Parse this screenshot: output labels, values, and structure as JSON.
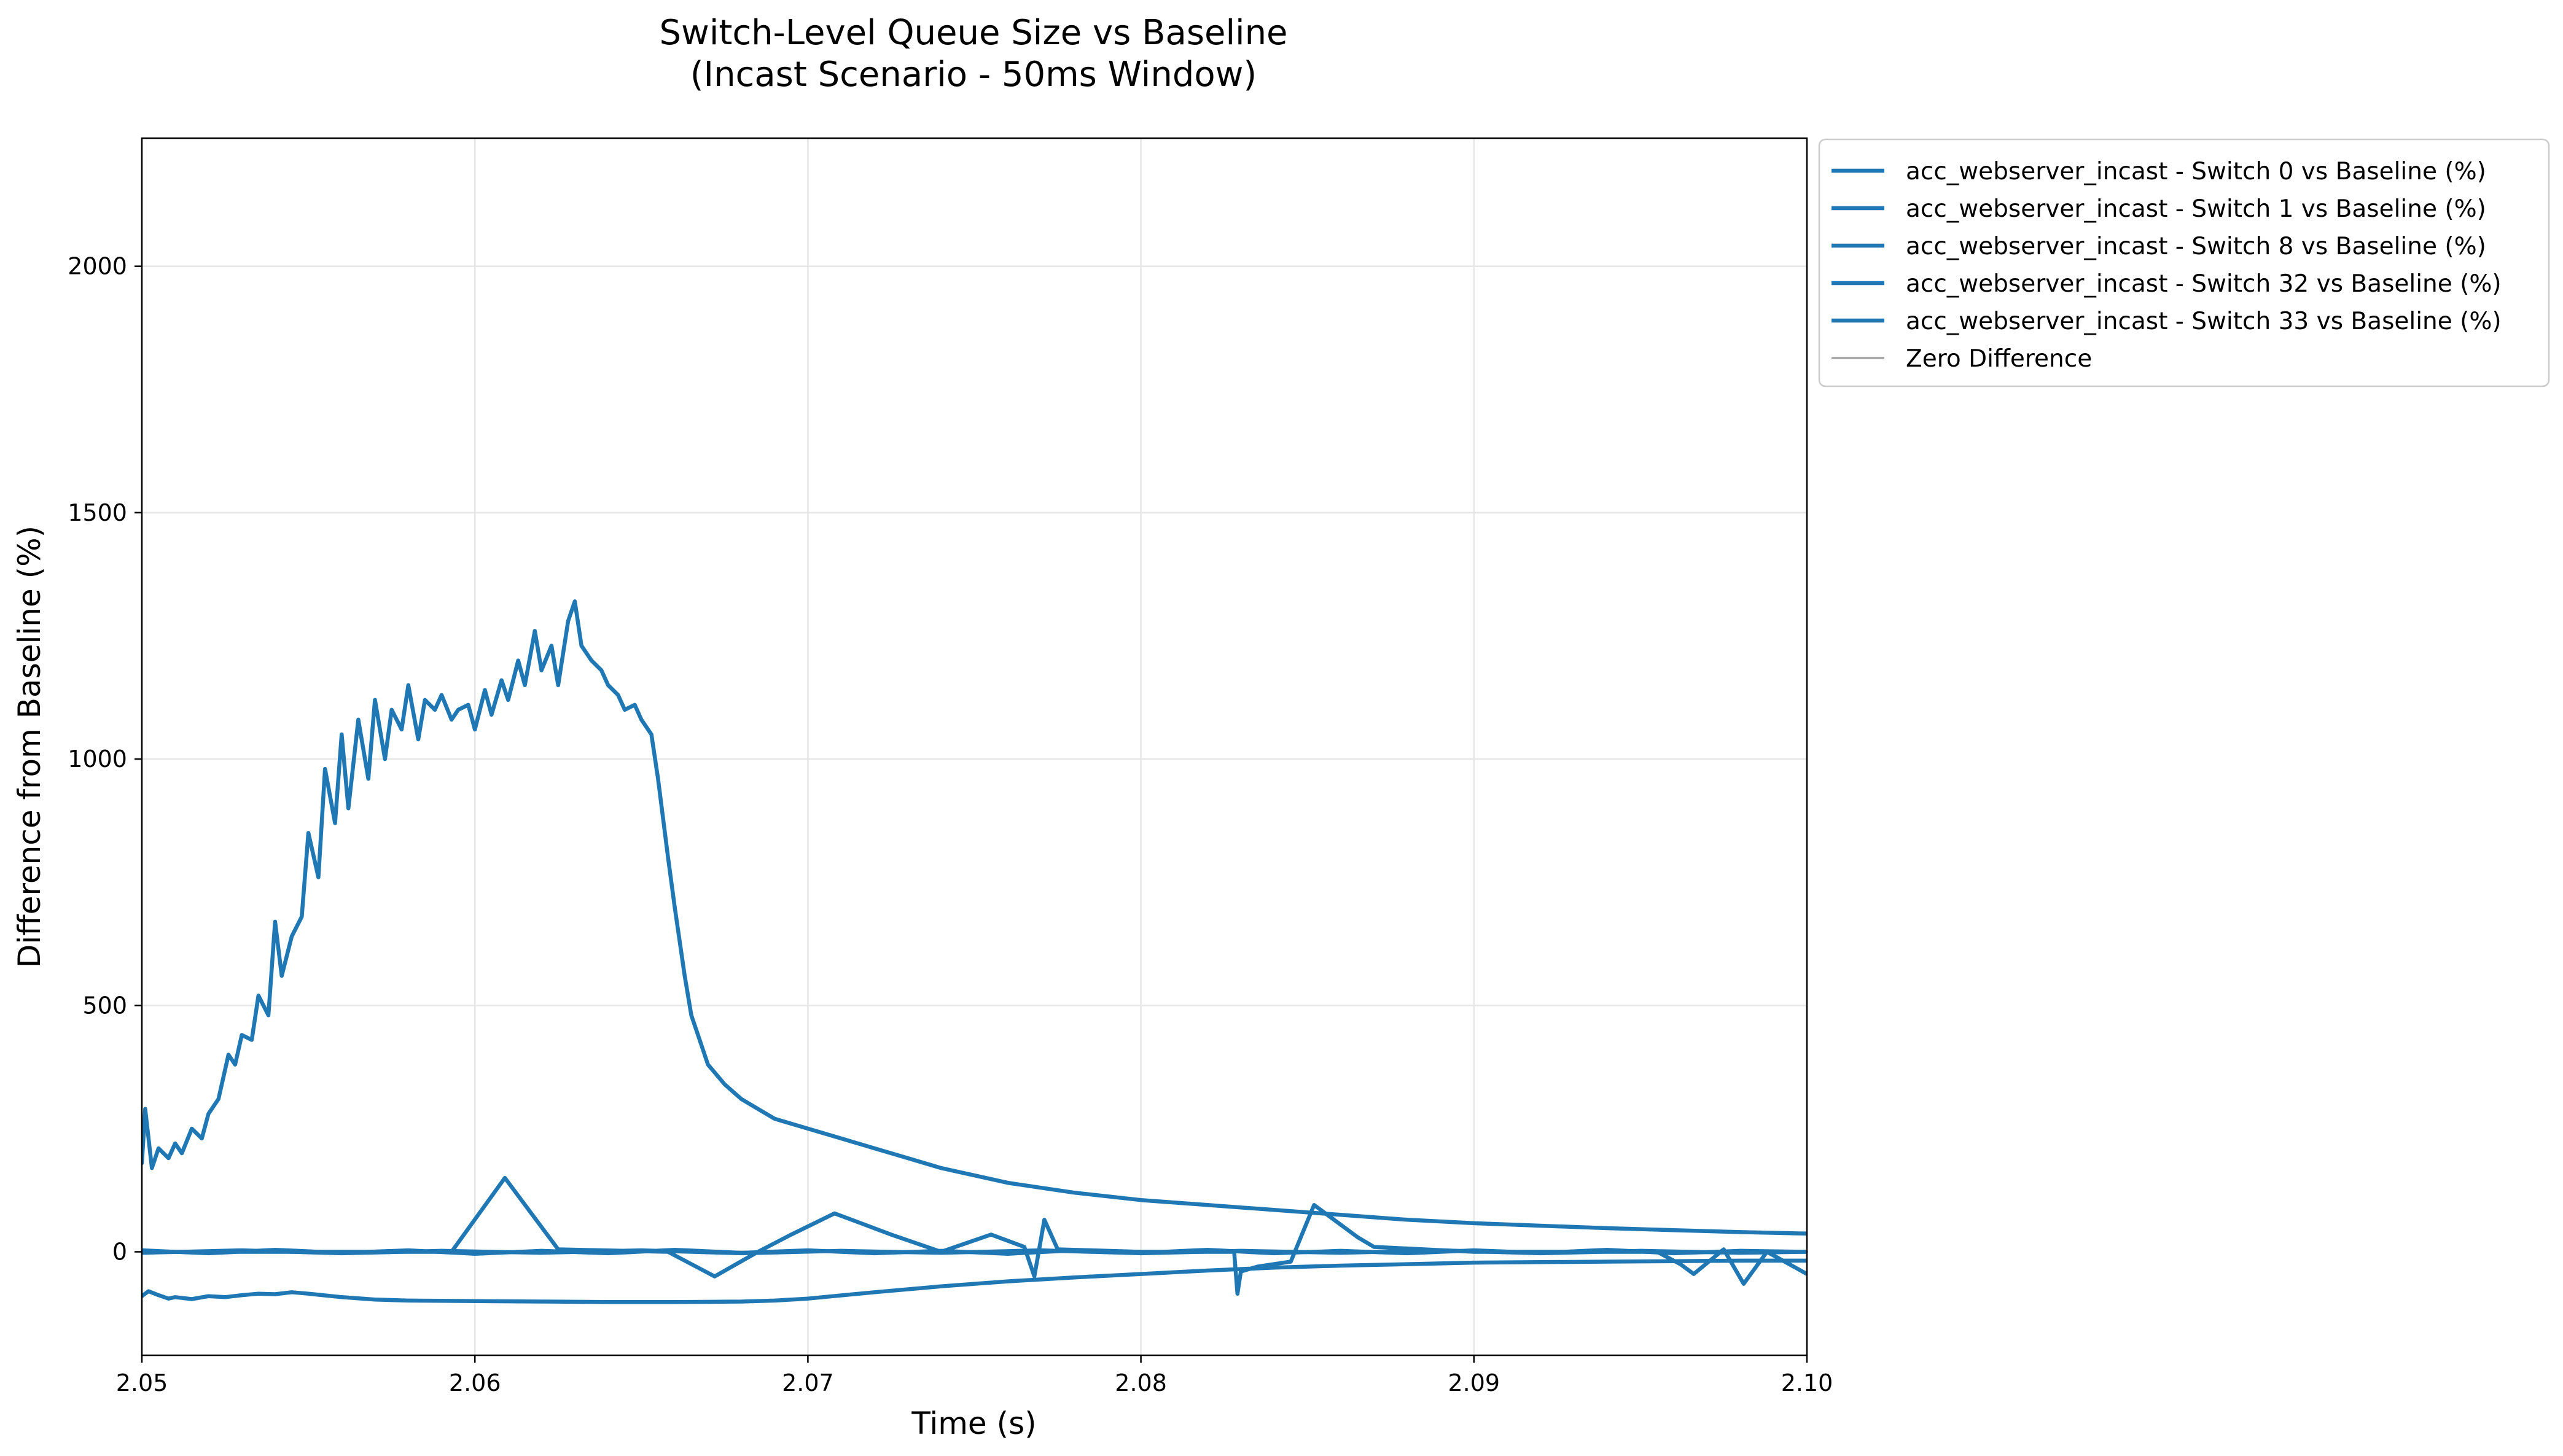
{
  "chart_data": {
    "type": "line",
    "title": "Switch-Level Queue Size vs Baseline",
    "subtitle": "(Incast Scenario - 50ms Window)",
    "xlabel": "Time (s)",
    "ylabel": "Difference from Baseline (%)",
    "xlim": [
      2.05,
      2.1
    ],
    "ylim": [
      -210,
      2260
    ],
    "xticks": [
      2.05,
      2.06,
      2.07,
      2.08,
      2.09,
      2.1
    ],
    "xtick_labels": [
      "2.05",
      "2.06",
      "2.07",
      "2.08",
      "2.09",
      "2.10"
    ],
    "yticks": [
      0,
      500,
      1000,
      1500,
      2000
    ],
    "ytick_labels": [
      "0",
      "500",
      "1000",
      "1500",
      "2000"
    ],
    "grid": true,
    "legend_position": "outside-top-right",
    "series_color": "#1f77b4",
    "zero_line_color": "#aaaaaa",
    "series": [
      {
        "name": "acc_webserver_incast - Switch 0 vs Baseline (%)",
        "x": [
          2.05,
          2.0501,
          2.0503,
          2.0505,
          2.0508,
          2.051,
          2.0512,
          2.0515,
          2.0518,
          2.052,
          2.0523,
          2.0526,
          2.0528,
          2.053,
          2.0533,
          2.0535,
          2.0538,
          2.054,
          2.0542,
          2.0545,
          2.0548,
          2.055,
          2.0553,
          2.0555,
          2.0558,
          2.056,
          2.0562,
          2.0565,
          2.0568,
          2.057,
          2.0573,
          2.0575,
          2.0578,
          2.058,
          2.0583,
          2.0585,
          2.0588,
          2.059,
          2.0593,
          2.0595,
          2.0598,
          2.06,
          2.0603,
          2.0605,
          2.0608,
          2.061,
          2.0613,
          2.0615,
          2.0618,
          2.062,
          2.0623,
          2.0625,
          2.0628,
          2.063,
          2.0632,
          2.0635,
          2.0638,
          2.064,
          2.0643,
          2.0645,
          2.0648,
          2.065,
          2.0653,
          2.0655,
          2.0658,
          2.066,
          2.0663,
          2.0665,
          2.0668,
          2.067,
          2.0675,
          2.068,
          2.0685,
          2.069,
          2.0695,
          2.07,
          2.071,
          2.072,
          2.073,
          2.074,
          2.075,
          2.076,
          2.077,
          2.078,
          2.08,
          2.082,
          2.084,
          2.086,
          2.088,
          2.09,
          2.092,
          2.094,
          2.096,
          2.098,
          2.1
        ],
        "values": [
          180,
          290,
          170,
          210,
          190,
          220,
          200,
          250,
          230,
          280,
          310,
          400,
          380,
          440,
          430,
          520,
          480,
          670,
          560,
          640,
          680,
          850,
          760,
          980,
          870,
          1050,
          900,
          1080,
          960,
          1120,
          1000,
          1100,
          1060,
          1150,
          1040,
          1120,
          1100,
          1130,
          1080,
          1100,
          1110,
          1060,
          1140,
          1090,
          1160,
          1120,
          1200,
          1150,
          1260,
          1180,
          1230,
          1150,
          1280,
          1320,
          1230,
          1200,
          1180,
          1150,
          1130,
          1100,
          1110,
          1080,
          1050,
          960,
          800,
          700,
          560,
          480,
          420,
          380,
          340,
          310,
          290,
          270,
          260,
          250,
          230,
          210,
          190,
          170,
          155,
          140,
          130,
          120,
          105,
          95,
          85,
          75,
          65,
          58,
          53,
          48,
          44,
          40,
          37
        ]
      },
      {
        "name": "acc_webserver_incast - Switch 1 vs Baseline (%)",
        "x": [
          2.05,
          2.0502,
          2.0505,
          2.0508,
          2.051,
          2.0515,
          2.052,
          2.0525,
          2.053,
          2.0535,
          2.054,
          2.0545,
          2.055,
          2.056,
          2.057,
          2.058,
          2.06,
          2.062,
          2.064,
          2.066,
          2.068,
          2.069,
          2.07,
          2.072,
          2.074,
          2.076,
          2.078,
          2.08,
          2.082,
          2.084,
          2.086,
          2.088,
          2.09,
          2.092,
          2.094,
          2.096,
          2.098,
          2.1
        ],
        "values": [
          -90,
          -80,
          -88,
          -95,
          -92,
          -96,
          -90,
          -92,
          -88,
          -85,
          -86,
          -82,
          -85,
          -92,
          -97,
          -99,
          -100,
          -101,
          -102,
          -102,
          -101,
          -99,
          -95,
          -82,
          -70,
          -60,
          -52,
          -45,
          -38,
          -32,
          -28,
          -25,
          -22,
          -21,
          -20,
          -19,
          -18,
          -18
        ]
      },
      {
        "name": "acc_webserver_incast - Switch 8 vs Baseline (%)",
        "x": [
          2.05,
          2.0593,
          2.0609,
          2.0625,
          2.0658,
          2.0672,
          2.0685,
          2.0695,
          2.0708,
          2.0725,
          2.074,
          2.0755,
          2.0765,
          2.0768,
          2.0771,
          2.0775,
          2.08,
          2.0828,
          2.0829,
          2.083,
          2.0835,
          2.0845,
          2.0852,
          2.0855,
          2.0865,
          2.087,
          2.09,
          2.0955,
          2.0962,
          2.0966,
          2.0975,
          2.0981,
          2.0988,
          2.1
        ],
        "values": [
          0,
          0,
          150,
          5,
          0,
          -50,
          0,
          35,
          78,
          35,
          0,
          35,
          10,
          -50,
          65,
          5,
          0,
          0,
          -85,
          -40,
          -30,
          -20,
          95,
          80,
          30,
          10,
          0,
          0,
          -25,
          -45,
          5,
          -65,
          0,
          -45
        ]
      },
      {
        "name": "acc_webserver_incast - Switch 32 vs Baseline (%)",
        "x": [
          2.05,
          2.052,
          2.054,
          2.056,
          2.058,
          2.06,
          2.062,
          2.064,
          2.066,
          2.068,
          2.07,
          2.072,
          2.074,
          2.076,
          2.078,
          2.08,
          2.082,
          2.084,
          2.086,
          2.088,
          2.09,
          2.092,
          2.094,
          2.096,
          2.098,
          2.1
        ],
        "values": [
          3,
          -3,
          4,
          -2,
          3,
          -4,
          2,
          -3,
          4,
          -2,
          3,
          -3,
          2,
          -4,
          3,
          -2,
          4,
          -3,
          2,
          -3,
          3,
          -2,
          4,
          -3,
          2,
          0
        ]
      },
      {
        "name": "acc_webserver_incast - Switch 33 vs Baseline (%)",
        "x": [
          2.05,
          2.053,
          2.056,
          2.059,
          2.062,
          2.065,
          2.068,
          2.071,
          2.074,
          2.077,
          2.08,
          2.083,
          2.086,
          2.089,
          2.092,
          2.095,
          2.098,
          2.1
        ],
        "values": [
          -2,
          3,
          -3,
          2,
          -2,
          3,
          -3,
          2,
          -2,
          3,
          -3,
          2,
          -2,
          3,
          -3,
          2,
          -2,
          0
        ]
      },
      {
        "name": "Zero Difference",
        "x": [
          2.05,
          2.1
        ],
        "values": [
          0,
          0
        ]
      }
    ]
  }
}
